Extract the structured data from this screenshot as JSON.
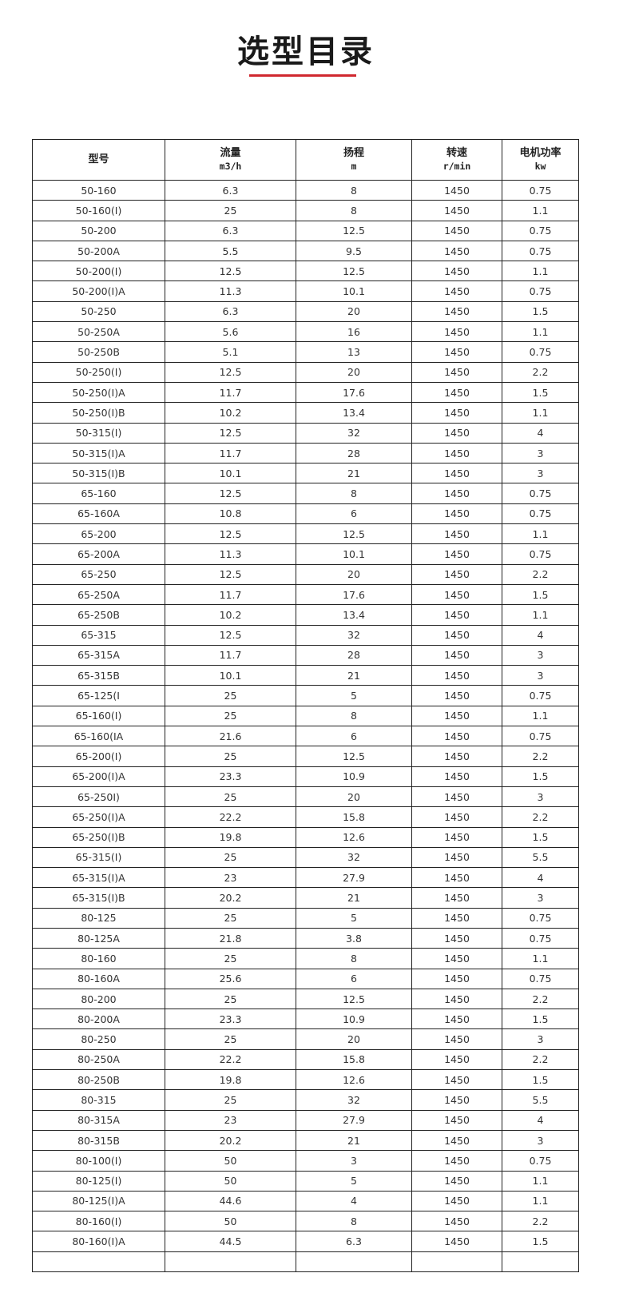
{
  "title": "选型目录",
  "accent_color": "#d0282f",
  "headers": [
    {
      "label": "型号",
      "unit": ""
    },
    {
      "label": "流量",
      "unit": "m3/h"
    },
    {
      "label": "扬程",
      "unit": "m"
    },
    {
      "label": "转速",
      "unit": "r/min"
    },
    {
      "label": "电机功率",
      "unit": "kw"
    }
  ],
  "rows": [
    [
      "50-160",
      "6.3",
      "8",
      "1450",
      "0.75"
    ],
    [
      "50-160(I)",
      "25",
      "8",
      "1450",
      "1.1"
    ],
    [
      "50-200",
      "6.3",
      "12.5",
      "1450",
      "0.75"
    ],
    [
      "50-200A",
      "5.5",
      "9.5",
      "1450",
      "0.75"
    ],
    [
      "50-200(I)",
      "12.5",
      "12.5",
      "1450",
      "1.1"
    ],
    [
      "50-200(I)A",
      "11.3",
      "10.1",
      "1450",
      "0.75"
    ],
    [
      "50-250",
      "6.3",
      "20",
      "1450",
      "1.5"
    ],
    [
      "50-250A",
      "5.6",
      "16",
      "1450",
      "1.1"
    ],
    [
      "50-250B",
      "5.1",
      "13",
      "1450",
      "0.75"
    ],
    [
      "50-250(I)",
      "12.5",
      "20",
      "1450",
      "2.2"
    ],
    [
      "50-250(I)A",
      "11.7",
      "17.6",
      "1450",
      "1.5"
    ],
    [
      "50-250(I)B",
      "10.2",
      "13.4",
      "1450",
      "1.1"
    ],
    [
      "50-315(I)",
      "12.5",
      "32",
      "1450",
      "4"
    ],
    [
      "50-315(I)A",
      "11.7",
      "28",
      "1450",
      "3"
    ],
    [
      "50-315(I)B",
      "10.1",
      "21",
      "1450",
      "3"
    ],
    [
      "65-160",
      "12.5",
      "8",
      "1450",
      "0.75"
    ],
    [
      "65-160A",
      "10.8",
      "6",
      "1450",
      "0.75"
    ],
    [
      "65-200",
      "12.5",
      "12.5",
      "1450",
      "1.1"
    ],
    [
      "65-200A",
      "11.3",
      "10.1",
      "1450",
      "0.75"
    ],
    [
      "65-250",
      "12.5",
      "20",
      "1450",
      "2.2"
    ],
    [
      "65-250A",
      "11.7",
      "17.6",
      "1450",
      "1.5"
    ],
    [
      "65-250B",
      "10.2",
      "13.4",
      "1450",
      "1.1"
    ],
    [
      "65-315",
      "12.5",
      "32",
      "1450",
      "4"
    ],
    [
      "65-315A",
      "11.7",
      "28",
      "1450",
      "3"
    ],
    [
      "65-315B",
      "10.1",
      "21",
      "1450",
      "3"
    ],
    [
      "65-125(I",
      "25",
      "5",
      "1450",
      "0.75"
    ],
    [
      "65-160(I)",
      "25",
      "8",
      "1450",
      "1.1"
    ],
    [
      "65-160(IA",
      "21.6",
      "6",
      "1450",
      "0.75"
    ],
    [
      "65-200(I)",
      "25",
      "12.5",
      "1450",
      "2.2"
    ],
    [
      "65-200(I)A",
      "23.3",
      "10.9",
      "1450",
      "1.5"
    ],
    [
      "65-250I)",
      "25",
      "20",
      "1450",
      "3"
    ],
    [
      "65-250(I)A",
      "22.2",
      "15.8",
      "1450",
      "2.2"
    ],
    [
      "65-250(I)B",
      "19.8",
      "12.6",
      "1450",
      "1.5"
    ],
    [
      "65-315(I)",
      "25",
      "32",
      "1450",
      "5.5"
    ],
    [
      "65-315(I)A",
      "23",
      "27.9",
      "1450",
      "4"
    ],
    [
      "65-315(I)B",
      "20.2",
      "21",
      "1450",
      "3"
    ],
    [
      "80-125",
      "25",
      "5",
      "1450",
      "0.75"
    ],
    [
      "80-125A",
      "21.8",
      "3.8",
      "1450",
      "0.75"
    ],
    [
      "80-160",
      "25",
      "8",
      "1450",
      "1.1"
    ],
    [
      "80-160A",
      "25.6",
      "6",
      "1450",
      "0.75"
    ],
    [
      "80-200",
      "25",
      "12.5",
      "1450",
      "2.2"
    ],
    [
      "80-200A",
      "23.3",
      "10.9",
      "1450",
      "1.5"
    ],
    [
      "80-250",
      "25",
      "20",
      "1450",
      "3"
    ],
    [
      "80-250A",
      "22.2",
      "15.8",
      "1450",
      "2.2"
    ],
    [
      "80-250B",
      "19.8",
      "12.6",
      "1450",
      "1.5"
    ],
    [
      "80-315",
      "25",
      "32",
      "1450",
      "5.5"
    ],
    [
      "80-315A",
      "23",
      "27.9",
      "1450",
      "4"
    ],
    [
      "80-315B",
      "20.2",
      "21",
      "1450",
      "3"
    ],
    [
      "80-100(I)",
      "50",
      "3",
      "1450",
      "0.75"
    ],
    [
      "80-125(I)",
      "50",
      "5",
      "1450",
      "1.1"
    ],
    [
      "80-125(I)A",
      "44.6",
      "4",
      "1450",
      "1.1"
    ],
    [
      "80-160(I)",
      "50",
      "8",
      "1450",
      "2.2"
    ],
    [
      "80-160(I)A",
      "44.5",
      "6.3",
      "1450",
      "1.5"
    ],
    [
      "",
      "",
      "",
      "",
      ""
    ]
  ]
}
